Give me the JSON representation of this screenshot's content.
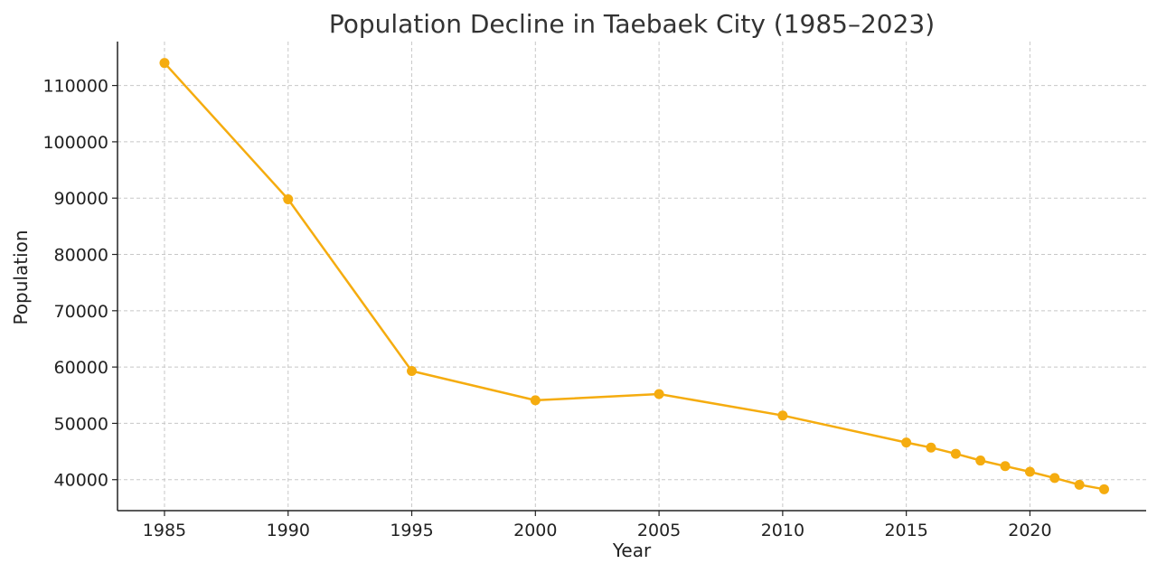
{
  "chart_data": {
    "type": "line",
    "title": "Population Decline in Taebaek City (1985–2023)",
    "xlabel": "Year",
    "ylabel": "Population",
    "xlim": [
      1983.1,
      2024.7
    ],
    "ylim": [
      34500,
      117800
    ],
    "x_ticks": [
      1985,
      1990,
      1995,
      2000,
      2005,
      2010,
      2015,
      2020
    ],
    "y_ticks": [
      40000,
      50000,
      60000,
      70000,
      80000,
      90000,
      100000,
      110000
    ],
    "grid": true,
    "line_color": "#f5ac0f",
    "series": [
      {
        "x": [
          1985,
          1990,
          1995,
          2000,
          2005,
          2010,
          2015,
          2016,
          2017,
          2018,
          2019,
          2020,
          2021,
          2022,
          2023
        ],
        "values": [
          114000,
          89800,
          59300,
          54100,
          55200,
          51400,
          46600,
          45700,
          44600,
          43400,
          42400,
          41400,
          40300,
          39100,
          38300
        ]
      }
    ]
  }
}
